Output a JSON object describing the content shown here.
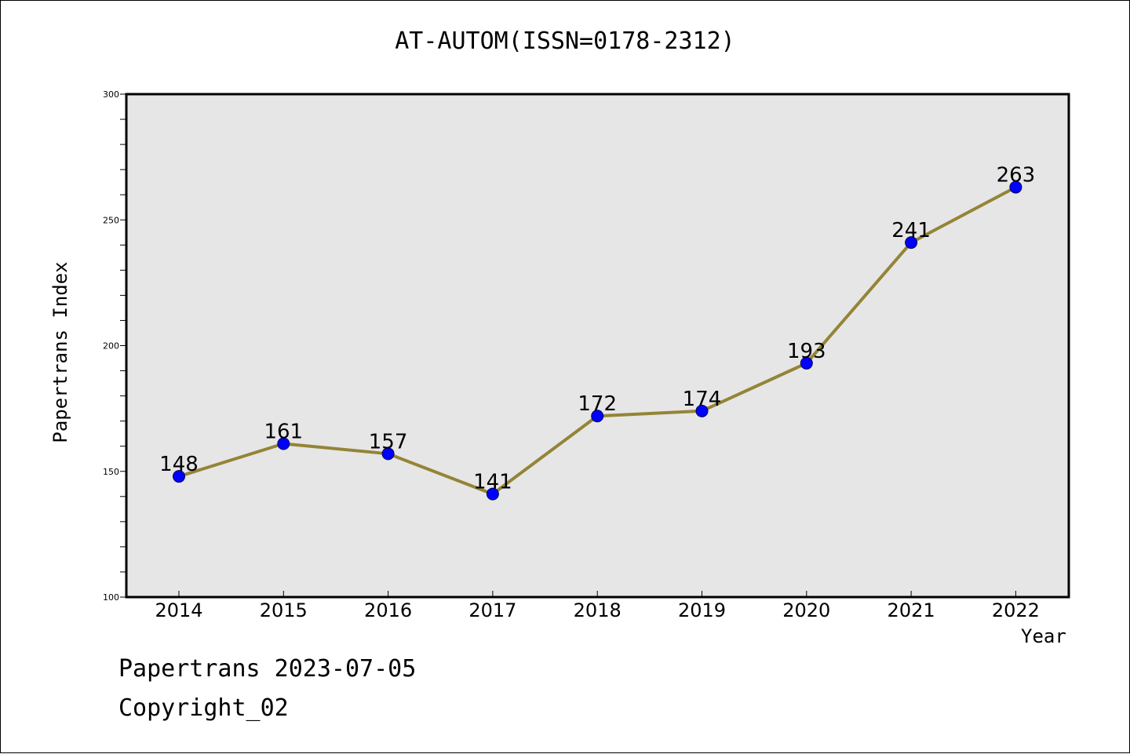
{
  "chart_data": {
    "type": "line",
    "title": "AT-AUTOM(ISSN=0178-2312)",
    "xlabel": "Year",
    "ylabel": "Papertrans Index",
    "categories": [
      "2014",
      "2015",
      "2016",
      "2017",
      "2018",
      "2019",
      "2020",
      "2021",
      "2022"
    ],
    "series": [
      {
        "values": [
          148,
          161,
          157,
          141,
          172,
          174,
          193,
          241,
          263
        ]
      }
    ],
    "ylim": [
      100,
      300
    ],
    "yticks": [
      "100",
      "150",
      "200",
      "250",
      "300"
    ],
    "grid": false,
    "plot_background": "#e6e6e6",
    "line_color": "#948437",
    "marker_color": "#0000ff"
  },
  "footer": {
    "line1": "Papertrans 2023-07-05",
    "line2": "Copyright_02"
  }
}
